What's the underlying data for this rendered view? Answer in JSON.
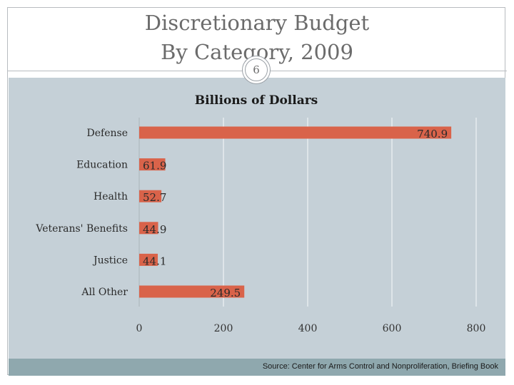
{
  "slide": {
    "title_line1": "Discretionary Budget",
    "title_line2": "By Category, 2009",
    "slide_number": "6",
    "source": "Source: Center for Arms Control and Nonproliferation, Briefing Book"
  },
  "colors": {
    "bar": "#d9634a",
    "plot_background": "#c5d0d7",
    "footer_band": "#8fa8ae"
  },
  "chart_data": {
    "type": "bar",
    "orientation": "horizontal",
    "title": "Billions of Dollars",
    "categories": [
      "Defense",
      "Education",
      "Health",
      "Veterans' Benefits",
      "Justice",
      "All Other"
    ],
    "values": [
      740.9,
      61.9,
      52.7,
      44.9,
      44.1,
      249.5
    ],
    "value_labels": [
      "740.9",
      "61.9",
      "52.7",
      "44.9",
      "44.1",
      "249.5"
    ],
    "xlim": [
      0,
      800
    ],
    "xticks": [
      0,
      200,
      400,
      600,
      800
    ],
    "xtick_labels": [
      "0",
      "200",
      "400",
      "600",
      "800"
    ],
    "grid": "vertical",
    "legend": "none"
  }
}
